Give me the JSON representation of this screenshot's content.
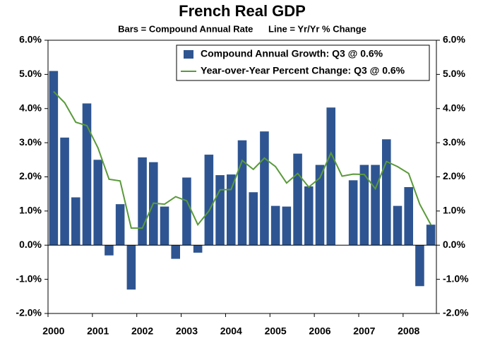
{
  "chart_data": {
    "type": "bar",
    "title": "French Real GDP",
    "subtitle": "Bars = Compound Annual Rate      Line = Yr/Yr % Change",
    "categories": [
      "2000",
      null,
      null,
      null,
      "2001",
      null,
      null,
      null,
      "2002",
      null,
      null,
      null,
      "2003",
      null,
      null,
      null,
      "2004",
      null,
      null,
      null,
      "2005",
      null,
      null,
      null,
      "2006",
      null,
      null,
      null,
      "2007",
      null,
      null,
      null,
      "2008",
      null,
      null
    ],
    "series": [
      {
        "name": "Compound Annual Growth: Q3 @ 0.6%",
        "type": "bar",
        "color": "#2e5591",
        "values": [
          5.1,
          3.15,
          1.4,
          4.15,
          2.5,
          -0.3,
          1.2,
          -1.3,
          2.57,
          2.43,
          1.13,
          -0.4,
          1.98,
          -0.22,
          2.65,
          2.05,
          2.07,
          3.07,
          1.55,
          3.33,
          1.15,
          1.13,
          2.68,
          1.72,
          2.35,
          4.03,
          0,
          1.9,
          2.35,
          2.35,
          3.1,
          1.15,
          1.7,
          -1.2,
          0.6
        ]
      },
      {
        "name": "Year-over-Year Percent Change: Q3 @ 0.6%",
        "type": "line",
        "color": "#5a9a3a",
        "values": [
          4.5,
          4.17,
          3.6,
          3.5,
          2.85,
          1.93,
          1.88,
          0.5,
          0.5,
          1.23,
          1.2,
          1.42,
          1.3,
          0.6,
          1.0,
          1.62,
          1.63,
          2.48,
          2.22,
          2.55,
          2.3,
          1.82,
          2.1,
          1.7,
          1.97,
          2.7,
          2.02,
          2.08,
          2.07,
          1.65,
          2.45,
          2.3,
          2.1,
          1.2,
          0.6
        ]
      }
    ],
    "ylim": [
      -2,
      6
    ],
    "yticks": [
      {
        "value": -2,
        "label": "-2.0%"
      },
      {
        "value": -1,
        "label": "-1.0%"
      },
      {
        "value": 0,
        "label": "0.0%"
      },
      {
        "value": 1,
        "label": "1.0%"
      },
      {
        "value": 2,
        "label": "2.0%"
      },
      {
        "value": 3,
        "label": "3.0%"
      },
      {
        "value": 4,
        "label": "4.0%"
      },
      {
        "value": 5,
        "label": "5.0%"
      },
      {
        "value": 6,
        "label": "6.0%"
      }
    ],
    "y2lim": [
      -2,
      6
    ],
    "y2ticks": [
      {
        "value": -2,
        "label": "-2.0%"
      },
      {
        "value": -1,
        "label": "-1.0%"
      },
      {
        "value": 0,
        "label": "0.0%"
      },
      {
        "value": 1,
        "label": "1.0%"
      },
      {
        "value": 2,
        "label": "2.0%"
      },
      {
        "value": 3,
        "label": "3.0%"
      },
      {
        "value": 4,
        "label": "4.0%"
      },
      {
        "value": 5,
        "label": "5.0%"
      },
      {
        "value": 6,
        "label": "6.0%"
      }
    ],
    "legend": "upper right"
  }
}
